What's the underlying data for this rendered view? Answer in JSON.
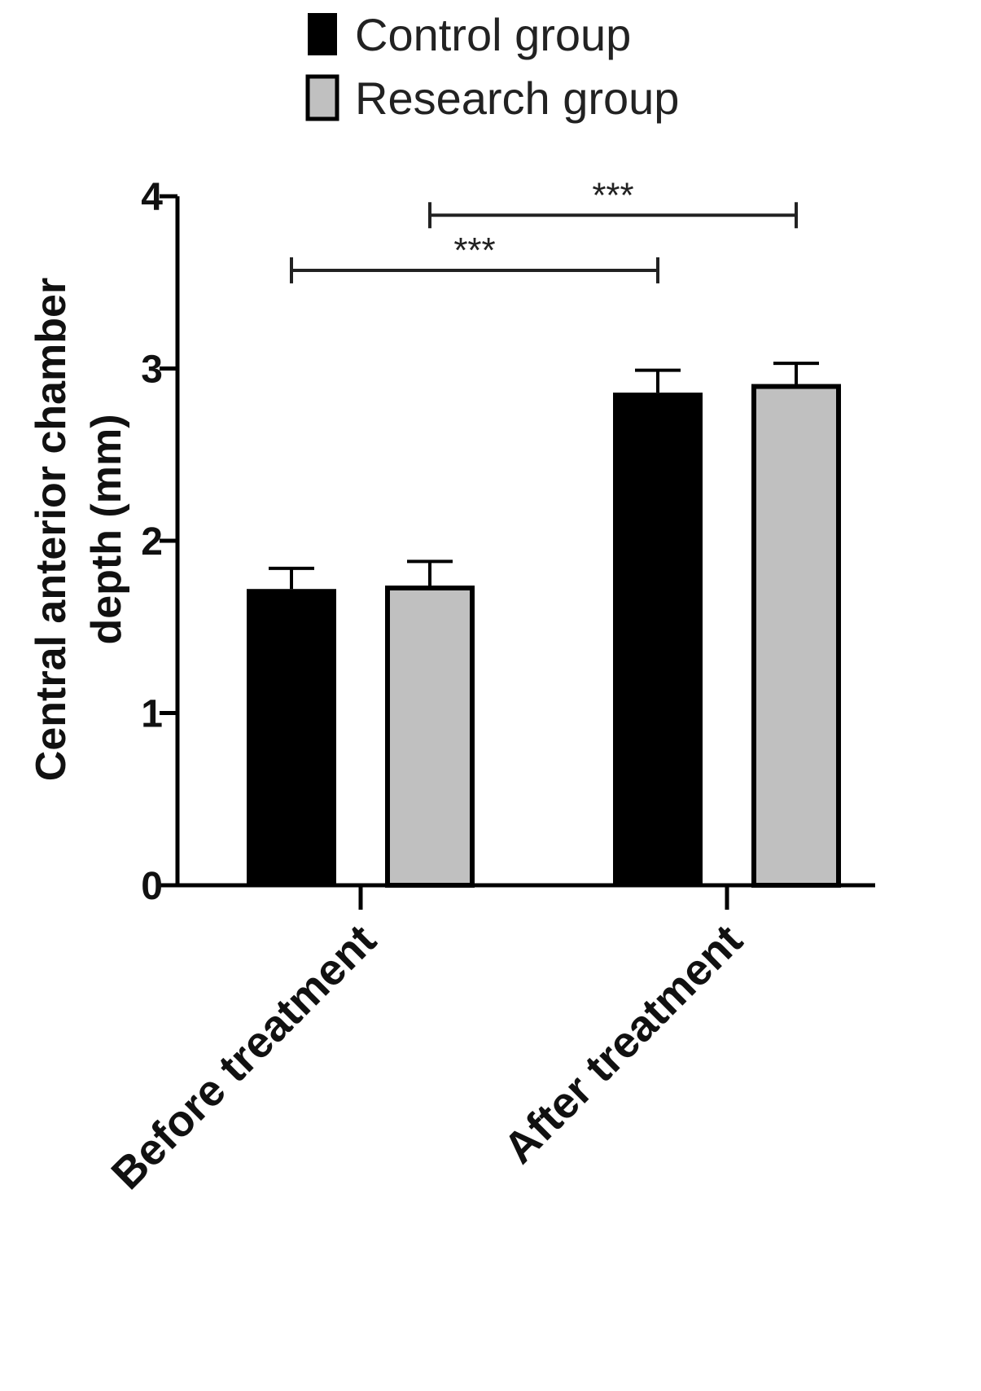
{
  "chart_data": {
    "type": "bar",
    "categories": [
      "Before treatment",
      "After treatment"
    ],
    "series": [
      {
        "name": "Control group",
        "values": [
          1.72,
          2.86
        ],
        "errors": [
          0.12,
          0.13
        ],
        "color": "#000000"
      },
      {
        "name": "Research group",
        "values": [
          1.74,
          2.91
        ],
        "errors": [
          0.14,
          0.12
        ],
        "color": "#c0c0c0"
      }
    ],
    "ylabel_lines": [
      "Central anterior chamber",
      "depth (mm)"
    ],
    "ylim": [
      0,
      4
    ],
    "yticks": [
      "0",
      "1",
      "2",
      "3",
      "4"
    ],
    "significance": [
      {
        "from_series": 0,
        "to_series": 0,
        "from_category": 0,
        "to_category": 1,
        "y_value": 3.57,
        "label": "***"
      },
      {
        "from_series": 1,
        "to_series": 1,
        "from_category": 0,
        "to_category": 1,
        "y_value": 3.89,
        "label": "***"
      }
    ],
    "legend_position": "top",
    "grid": false
  }
}
